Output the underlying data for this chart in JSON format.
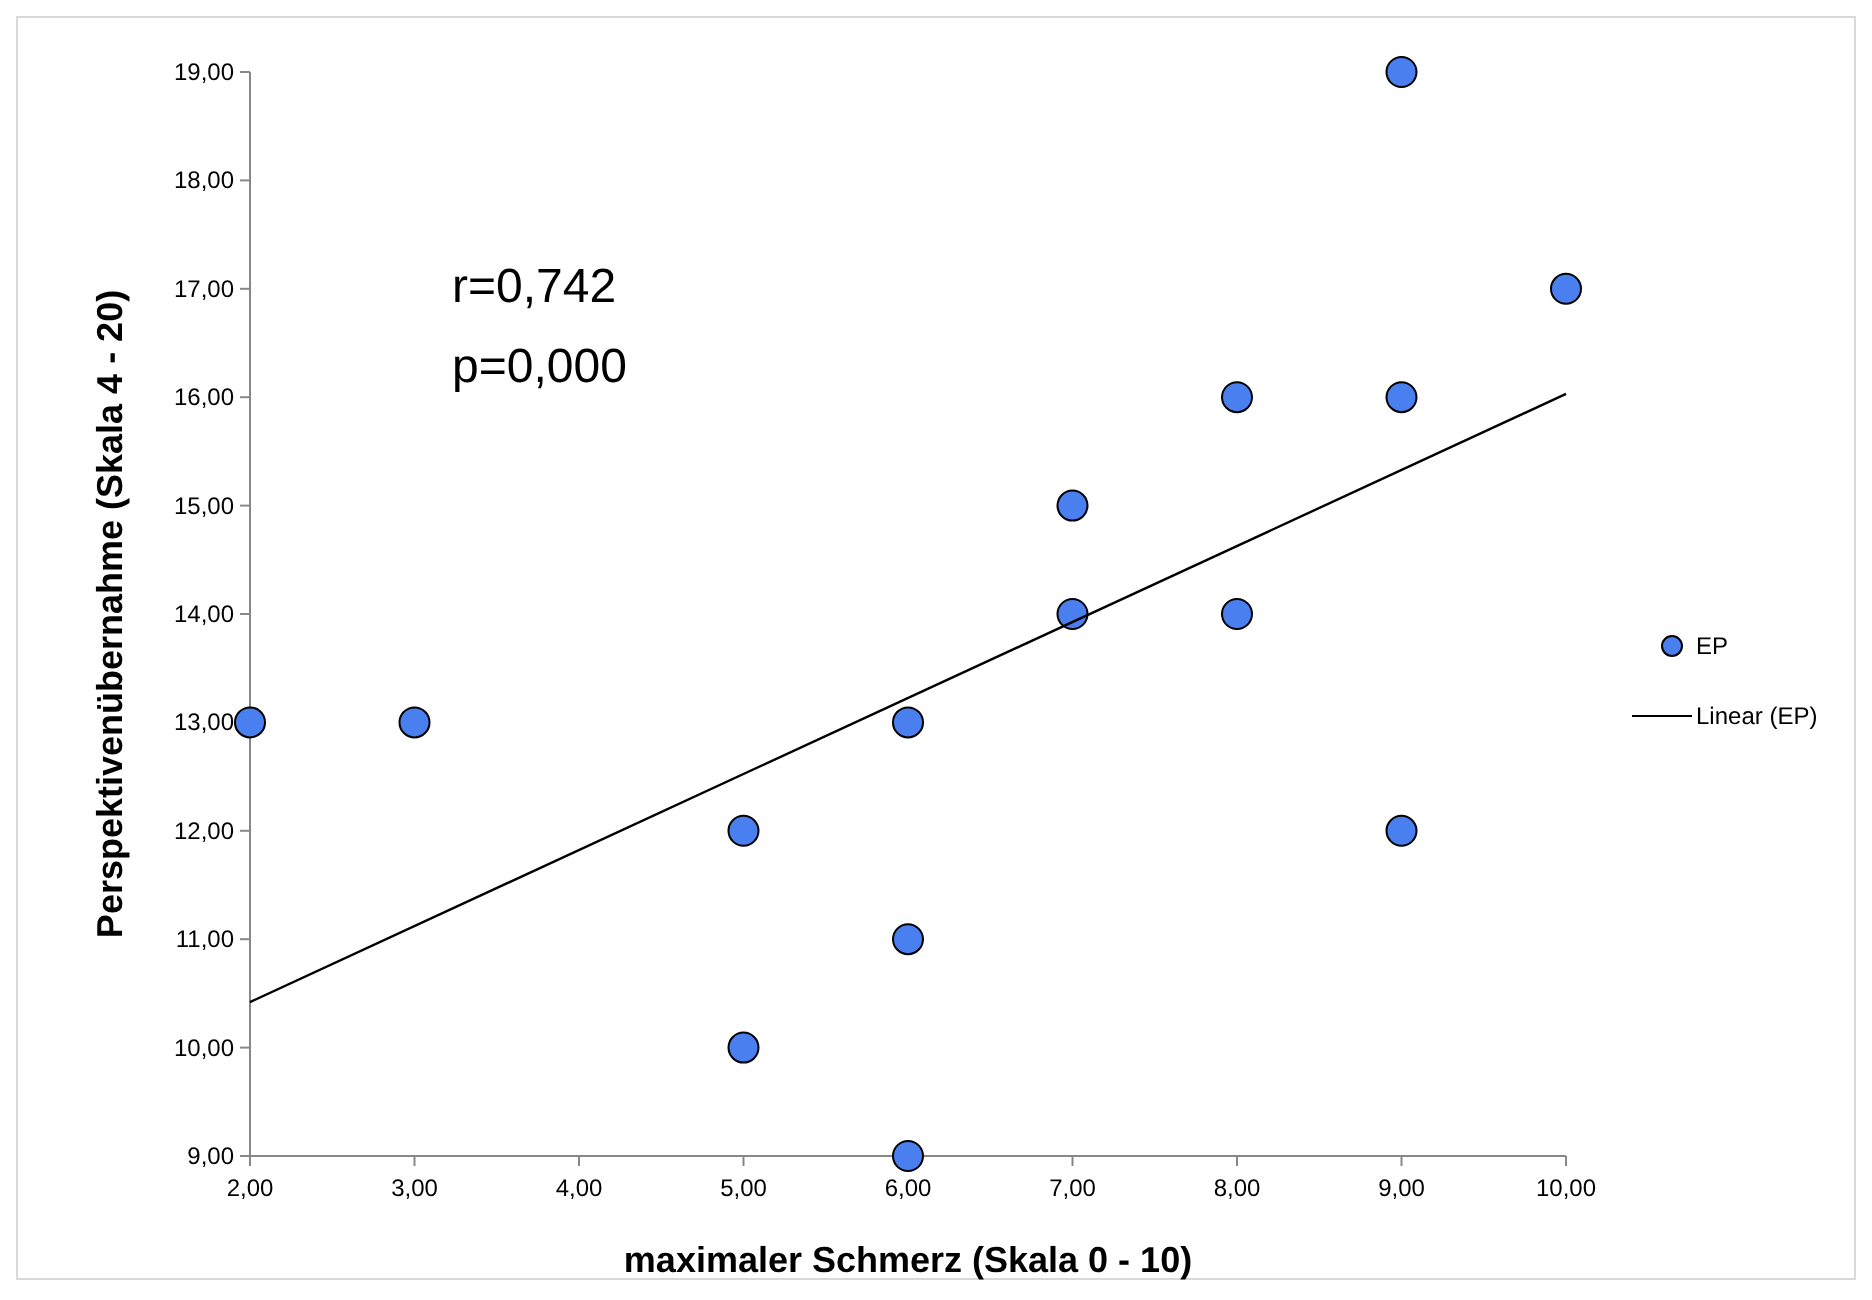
{
  "chart_data": {
    "type": "scatter",
    "xlabel": "maximaler Schmerz (Skala 0 - 10)",
    "ylabel": "Perspektivenübernahme  (Skala 4 - 20)",
    "annotations": [
      "r=0,742",
      "p=0,000"
    ],
    "xlim": [
      2,
      10
    ],
    "ylim": [
      9,
      19
    ],
    "xticks": [
      {
        "value": 2,
        "label": "2,00"
      },
      {
        "value": 3,
        "label": "3,00"
      },
      {
        "value": 4,
        "label": "4,00"
      },
      {
        "value": 5,
        "label": "5,00"
      },
      {
        "value": 6,
        "label": "6,00"
      },
      {
        "value": 7,
        "label": "7,00"
      },
      {
        "value": 8,
        "label": "8,00"
      },
      {
        "value": 9,
        "label": "9,00"
      },
      {
        "value": 10,
        "label": "10,00"
      }
    ],
    "yticks": [
      {
        "value": 9,
        "label": "9,00"
      },
      {
        "value": 10,
        "label": "10,00"
      },
      {
        "value": 11,
        "label": "11,00"
      },
      {
        "value": 12,
        "label": "12,00"
      },
      {
        "value": 13,
        "label": "13,00"
      },
      {
        "value": 14,
        "label": "14,00"
      },
      {
        "value": 15,
        "label": "15,00"
      },
      {
        "value": 16,
        "label": "16,00"
      },
      {
        "value": 17,
        "label": "17,00"
      },
      {
        "value": 18,
        "label": "18,00"
      },
      {
        "value": 19,
        "label": "19,00"
      }
    ],
    "grid": false,
    "legend": "right",
    "marker": "circle",
    "series": [
      {
        "name": "EP",
        "color": "#4a7ff0",
        "x": [
          2,
          3,
          5,
          5,
          6,
          6,
          6,
          7,
          7,
          8,
          8,
          9,
          9,
          9,
          10
        ],
        "values": [
          13,
          13,
          12,
          10,
          13,
          11,
          9,
          15,
          14,
          16,
          14,
          19,
          16,
          12,
          17
        ]
      },
      {
        "name": "Linear (EP)",
        "type": "line",
        "color": "#000000",
        "marker": "none",
        "line_style": "solid",
        "x": [
          2,
          10
        ],
        "values": [
          10.42,
          16.03
        ]
      }
    ]
  }
}
